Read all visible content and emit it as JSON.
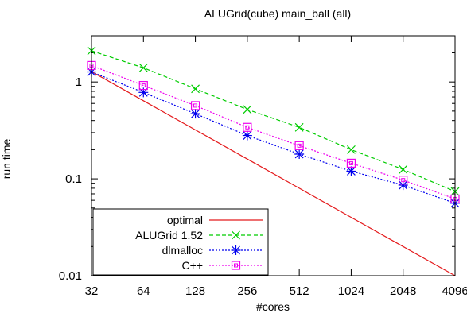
{
  "chart_data": {
    "type": "line",
    "title": "ALUGrid(cube) main_ball (all)",
    "xlabel": "#cores",
    "ylabel": "run time",
    "x_scale": "log2",
    "y_scale": "log10",
    "xlim": [
      32,
      4096
    ],
    "ylim": [
      0.01,
      3
    ],
    "x_ticks": [
      32,
      64,
      128,
      256,
      512,
      1024,
      2048,
      4096
    ],
    "x_tick_labels": [
      "32",
      "64",
      "128",
      "256",
      "512",
      "1024",
      "2048",
      "4096"
    ],
    "y_ticks": [
      0.01,
      0.1,
      1
    ],
    "y_tick_labels": [
      "0.01",
      "0.1",
      "1"
    ],
    "grid": false,
    "legend_position": "bottom-left",
    "x": [
      32,
      64,
      128,
      256,
      512,
      1024,
      2048,
      4096
    ],
    "series": [
      {
        "name": "optimal",
        "values": [
          1.28,
          0.64,
          0.32,
          0.16,
          0.08,
          0.04,
          0.02,
          0.01
        ],
        "color": "#e41a1c",
        "dash": "solid",
        "marker": "none"
      },
      {
        "name": "ALUGrid 1.52",
        "values": [
          2.1,
          1.4,
          0.85,
          0.52,
          0.34,
          0.2,
          0.125,
          0.074
        ],
        "color": "#00cc00",
        "dash": "dashed",
        "marker": "cross"
      },
      {
        "name": "dlmalloc",
        "values": [
          1.27,
          0.78,
          0.47,
          0.28,
          0.18,
          0.12,
          0.086,
          0.056
        ],
        "color": "#0000ee",
        "dash": "dotted",
        "marker": "star"
      },
      {
        "name": "C++",
        "values": [
          1.48,
          0.92,
          0.57,
          0.34,
          0.22,
          0.145,
          0.097,
          0.062
        ],
        "color": "#ee00ee",
        "dash": "dotted",
        "marker": "square"
      }
    ]
  }
}
